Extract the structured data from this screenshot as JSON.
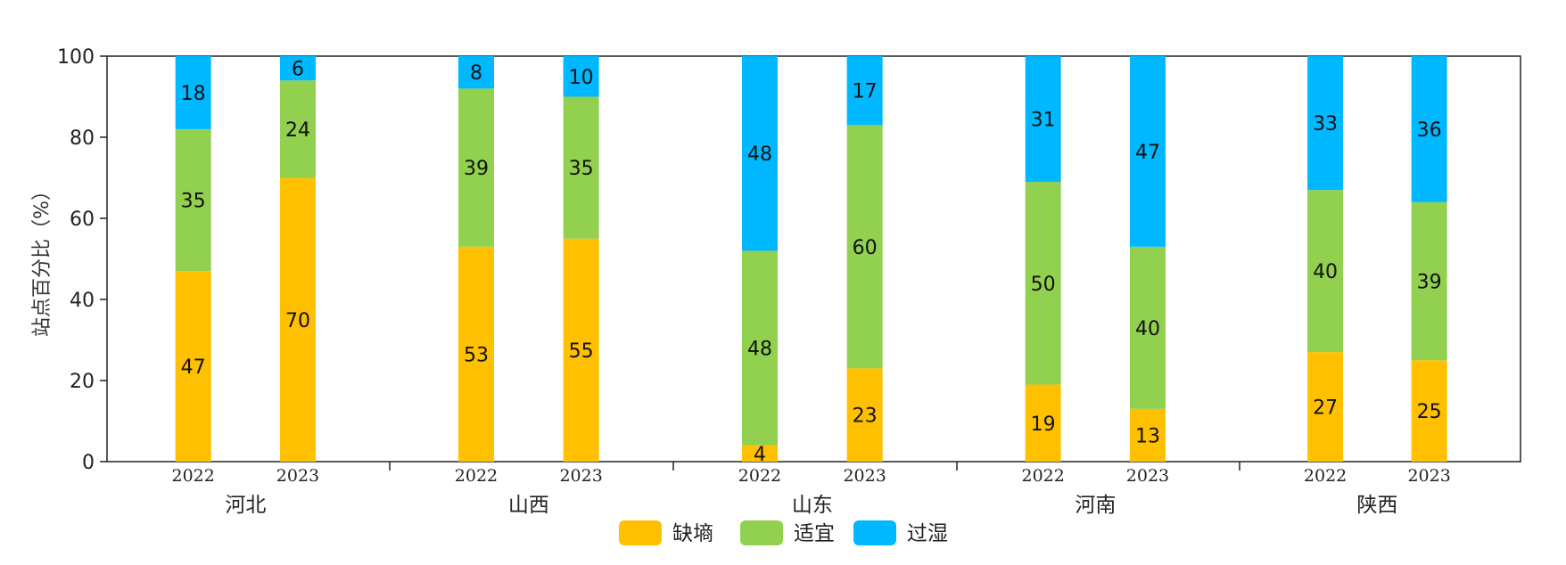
{
  "chart_data": {
    "type": "bar",
    "stacked": true,
    "ylabel": "站点百分比（%）",
    "ylim": [
      0,
      100
    ],
    "yticks": [
      0,
      20,
      40,
      60,
      80,
      100
    ],
    "grid": false,
    "legend_position": "bottom-center",
    "groups": [
      {
        "name": "河北",
        "bars": [
          {
            "year": "2022",
            "values": [
              47,
              35,
              18
            ]
          },
          {
            "year": "2023",
            "values": [
              70,
              24,
              6
            ]
          }
        ]
      },
      {
        "name": "山西",
        "bars": [
          {
            "year": "2022",
            "values": [
              53,
              39,
              8
            ]
          },
          {
            "year": "2023",
            "values": [
              55,
              35,
              10
            ]
          }
        ]
      },
      {
        "name": "山东",
        "bars": [
          {
            "year": "2022",
            "values": [
              4,
              48,
              48
            ]
          },
          {
            "year": "2023",
            "values": [
              23,
              60,
              17
            ]
          }
        ]
      },
      {
        "name": "河南",
        "bars": [
          {
            "year": "2022",
            "values": [
              19,
              50,
              31
            ]
          },
          {
            "year": "2023",
            "values": [
              13,
              40,
              47
            ]
          }
        ]
      },
      {
        "name": "陕西",
        "bars": [
          {
            "year": "2022",
            "values": [
              27,
              40,
              33
            ]
          },
          {
            "year": "2023",
            "values": [
              25,
              39,
              36
            ]
          }
        ]
      }
    ],
    "series": [
      {
        "name": "缺墒",
        "color": "#FFC000"
      },
      {
        "name": "适宜",
        "color": "#92D050"
      },
      {
        "name": "过湿",
        "color": "#00B8FF"
      }
    ]
  }
}
